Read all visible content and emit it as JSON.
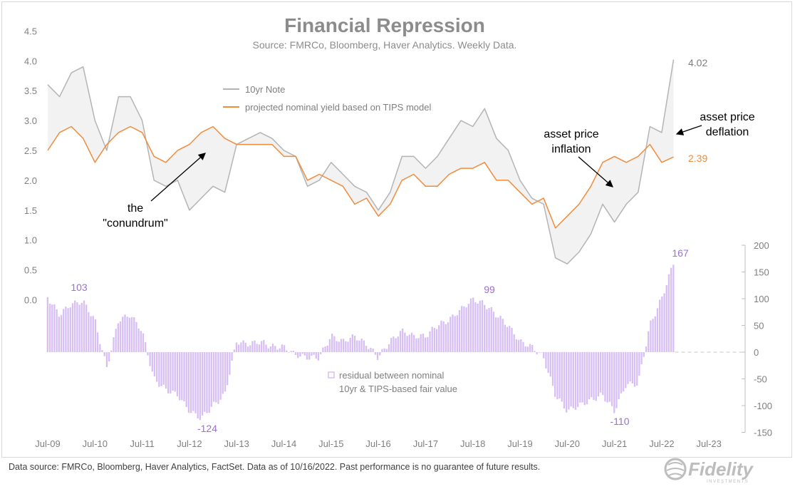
{
  "title": "Financial Repression",
  "subtitle": "Source: FMRCo, Bloomberg, Haver Analytics. Weekly Data.",
  "footer": "Data source: FMRCo, Bloomberg, Haver Analytics, FactSet. Data as of 10/16/2022. Past performance is no guarantee of future results.",
  "logo_text": "Fidelity",
  "logo_subtext": "INVESTMENTS",
  "colors": {
    "note": "#b4b4b4",
    "projected": "#f08c3c",
    "residual": "#d7bff5",
    "residual_label": "#9b6fd6",
    "text": "#7f7f7f",
    "fill": "#f2f2f2"
  },
  "chart_data": {
    "type": "line",
    "x_tick_labels": [
      "Jul-09",
      "Jul-10",
      "Jul-11",
      "Jul-12",
      "Jul-13",
      "Jul-14",
      "Jul-15",
      "Jul-16",
      "Jul-17",
      "Jul-18",
      "Jul-19",
      "Jul-20",
      "Jul-21",
      "Jul-22",
      "Jul-23"
    ],
    "x_range": [
      "2009-07",
      "2023-07"
    ],
    "left_axis": {
      "ticks": [
        "4.5",
        "4.0",
        "3.5",
        "3.0",
        "2.5",
        "2.0",
        "1.5",
        "1.0",
        "0.5",
        "0.0"
      ],
      "range": [
        0,
        4.5
      ]
    },
    "right_axis": {
      "ticks": [
        "200",
        "150",
        "100",
        "50",
        "0",
        "-50",
        "-100",
        "-150"
      ],
      "range": [
        -150,
        200
      ]
    },
    "x": [
      "2009-07",
      "2009-10",
      "2010-01",
      "2010-04",
      "2010-07",
      "2010-10",
      "2011-01",
      "2011-04",
      "2011-07",
      "2011-10",
      "2012-01",
      "2012-04",
      "2012-07",
      "2012-10",
      "2013-01",
      "2013-04",
      "2013-07",
      "2013-10",
      "2014-01",
      "2014-04",
      "2014-07",
      "2014-10",
      "2015-01",
      "2015-04",
      "2015-07",
      "2015-10",
      "2016-01",
      "2016-04",
      "2016-07",
      "2016-10",
      "2017-01",
      "2017-04",
      "2017-07",
      "2017-10",
      "2018-01",
      "2018-04",
      "2018-07",
      "2018-10",
      "2019-01",
      "2019-04",
      "2019-07",
      "2019-10",
      "2020-01",
      "2020-04",
      "2020-07",
      "2020-10",
      "2021-01",
      "2021-04",
      "2021-07",
      "2021-10",
      "2022-01",
      "2022-04",
      "2022-07",
      "2022-10"
    ],
    "series": [
      {
        "name": "10yr Note",
        "axis": "left",
        "values": [
          3.6,
          3.4,
          3.8,
          3.9,
          3.0,
          2.5,
          3.4,
          3.4,
          3.0,
          2.0,
          1.9,
          2.0,
          1.5,
          1.7,
          1.9,
          1.8,
          2.6,
          2.7,
          2.8,
          2.7,
          2.5,
          2.4,
          1.9,
          2.0,
          2.3,
          2.1,
          1.9,
          1.8,
          1.5,
          1.8,
          2.4,
          2.4,
          2.2,
          2.4,
          2.7,
          3.0,
          2.9,
          3.2,
          2.7,
          2.5,
          2.0,
          1.7,
          1.6,
          0.7,
          0.6,
          0.8,
          1.1,
          1.6,
          1.3,
          1.6,
          1.8,
          2.9,
          2.8,
          4.02
        ]
      },
      {
        "name": "projected nominal yield based on TIPS model",
        "axis": "left",
        "values": [
          2.5,
          2.8,
          2.9,
          2.7,
          2.3,
          2.6,
          2.8,
          2.9,
          2.8,
          2.4,
          2.3,
          2.5,
          2.6,
          2.8,
          2.9,
          2.7,
          2.6,
          2.6,
          2.6,
          2.6,
          2.4,
          2.4,
          2.0,
          2.1,
          2.0,
          1.9,
          1.6,
          1.7,
          1.4,
          1.6,
          2.0,
          2.1,
          1.9,
          1.9,
          2.1,
          2.2,
          2.2,
          2.3,
          2.0,
          2.0,
          1.8,
          1.6,
          1.7,
          1.2,
          1.4,
          1.6,
          1.9,
          2.3,
          2.4,
          2.3,
          2.4,
          2.6,
          2.3,
          2.39
        ]
      },
      {
        "name": "residual between nominal 10yr & TIPS-based fair value",
        "axis": "right",
        "type": "bar",
        "values": [
          103,
          70,
          90,
          95,
          60,
          -30,
          60,
          70,
          40,
          -50,
          -70,
          -80,
          -110,
          -124,
          -100,
          -80,
          20,
          15,
          20,
          10,
          10,
          -5,
          -10,
          -10,
          30,
          20,
          30,
          15,
          -10,
          20,
          40,
          30,
          30,
          50,
          60,
          80,
          99,
          90,
          70,
          50,
          20,
          10,
          -10,
          -80,
          -110,
          -100,
          -90,
          -80,
          -110,
          -60,
          -60,
          50,
          100,
          167
        ]
      }
    ],
    "legend": [
      "10yr Note",
      "projected nominal yield based on TIPS model"
    ],
    "legend_residual": [
      "residual between nominal",
      "10yr & TIPS-based fair value"
    ],
    "labels": {
      "note_last": "4.02",
      "projected_last": "2.39",
      "residual_max": "167",
      "residual_2009": "103",
      "residual_2018": "99",
      "residual_2012": "-124",
      "residual_2021": "-110"
    },
    "annotations": [
      {
        "lines": [
          "the",
          "\"conundrum\""
        ]
      },
      {
        "lines": [
          "asset price",
          "inflation"
        ]
      },
      {
        "lines": [
          "asset price",
          "deflation"
        ]
      }
    ]
  }
}
